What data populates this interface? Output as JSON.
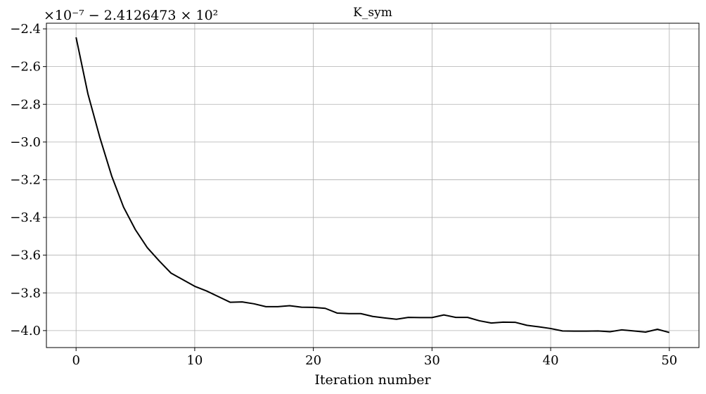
{
  "chart_data": {
    "type": "line",
    "title": "K_sym",
    "xlabel": "Iteration number",
    "ylabel": "",
    "offset_text": "×10⁻⁷ − 2.4126473 × 10²",
    "xlim": [
      -2.5,
      52.5
    ],
    "ylim": [
      -4.09,
      -2.37
    ],
    "xticks": [
      0,
      10,
      20,
      30,
      40,
      50
    ],
    "yticks": [
      -4.0,
      -3.8,
      -3.6,
      -3.4,
      -3.2,
      -3.0,
      -2.8,
      -2.6,
      -2.4
    ],
    "xtick_labels": [
      "0",
      "10",
      "20",
      "30",
      "40",
      "50"
    ],
    "ytick_labels": [
      "−4.0",
      "−3.8",
      "−3.6",
      "−3.4",
      "−3.2",
      "−3.0",
      "−2.8",
      "−2.6",
      "−2.4"
    ],
    "grid": true,
    "series": [
      {
        "color": "#000000",
        "x": [
          0,
          1,
          2,
          3,
          4,
          5,
          6,
          7,
          8,
          9,
          10,
          11,
          12,
          13,
          14,
          15,
          16,
          17,
          18,
          19,
          20,
          21,
          22,
          23,
          24,
          25,
          26,
          27,
          28,
          29,
          30,
          31,
          32,
          33,
          34,
          35,
          36,
          37,
          38,
          39,
          40,
          41,
          42,
          43,
          44,
          45,
          46,
          47,
          48,
          49,
          50
        ],
        "y": [
          -2.445,
          -2.745,
          -2.975,
          -3.18,
          -3.345,
          -3.465,
          -3.56,
          -3.63,
          -3.695,
          -3.73,
          -3.765,
          -3.79,
          -3.82,
          -3.85,
          -3.848,
          -3.858,
          -3.873,
          -3.873,
          -3.868,
          -3.876,
          -3.877,
          -3.882,
          -3.907,
          -3.91,
          -3.91,
          -3.925,
          -3.933,
          -3.94,
          -3.93,
          -3.931,
          -3.931,
          -3.917,
          -3.93,
          -3.93,
          -3.948,
          -3.96,
          -3.955,
          -3.956,
          -3.972,
          -3.98,
          -3.989,
          -4.002,
          -4.003,
          -4.003,
          -4.002,
          -4.006,
          -3.996,
          -4.002,
          -4.008,
          -3.993,
          -4.01
        ]
      }
    ]
  }
}
